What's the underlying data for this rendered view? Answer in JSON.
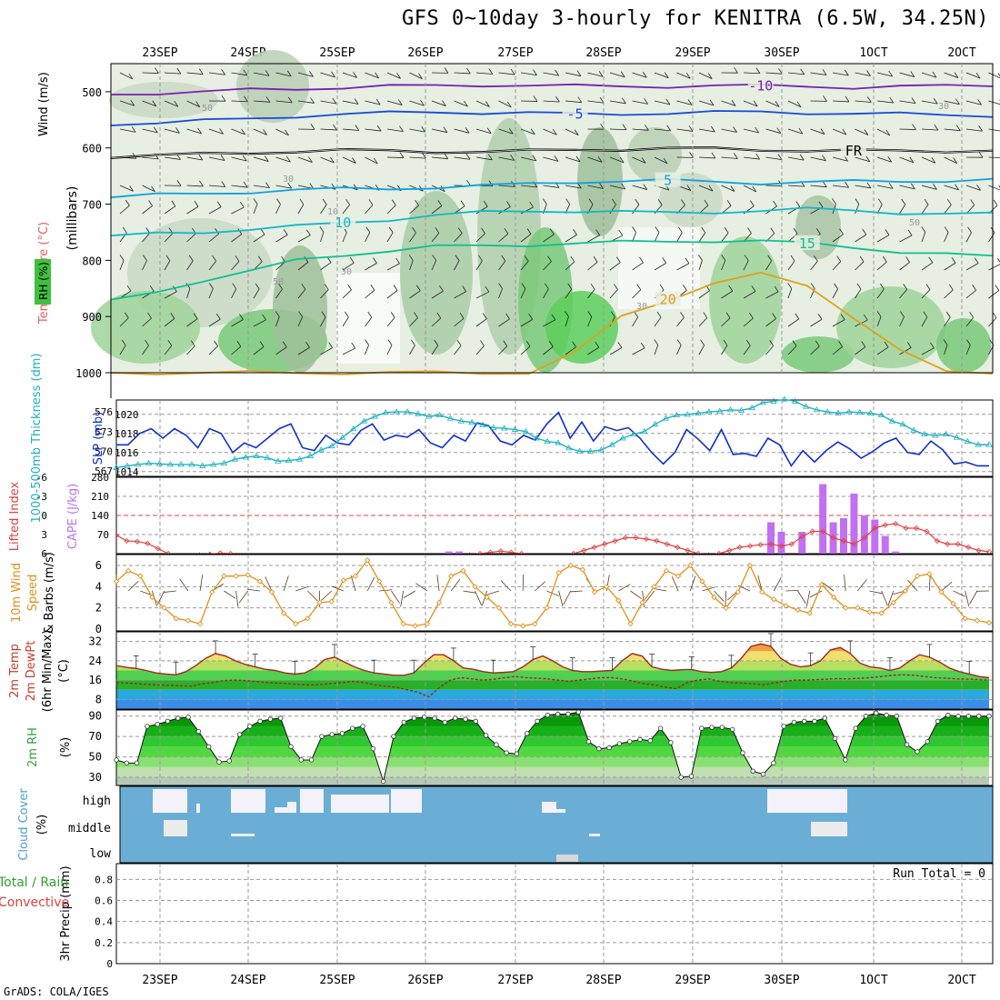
{
  "title": "GFS 0~10day 3-hourly for KENITRA (6.5W, 34.25N)",
  "credit": "GrADS: COLA/IGES",
  "dates": [
    "23SEP",
    "24SEP",
    "25SEP",
    "26SEP",
    "27SEP",
    "28SEP",
    "29SEP",
    "30SEP",
    "1OCT",
    "2OCT"
  ],
  "colors": {
    "grid": "#9a9a9a",
    "slp": "#1030c8",
    "thickness": "#20b0c0",
    "lifted": "#e04040",
    "cape": "#c070f0",
    "wind_speed": "#e0901a",
    "barb": "#5a3a20",
    "temp": "#a0281e",
    "dewpt": "#a0281e",
    "rh_line": "#111111",
    "cloud_bg": "#6aaed6",
    "cloud_gap": "#f4f2f8"
  },
  "chart_data": [
    {
      "type": "area",
      "name": "upper",
      "ylabel": "(millibars)",
      "side_labels": [
        "Wind (m/s)",
        "Temperature (°C)",
        "RH (%)"
      ],
      "yticks": [
        500,
        600,
        700,
        800,
        900,
        1000
      ],
      "isotherms": [
        {
          "label": "-10",
          "color": "#7a20b0",
          "level": [
            505,
            502,
            500,
            497,
            495,
            492,
            490,
            490,
            488,
            488,
            490,
            491,
            490,
            489,
            490,
            490,
            492,
            491,
            490,
            488
          ]
        },
        {
          "label": "-5",
          "color": "#1848d8",
          "level": [
            560,
            555,
            552,
            548,
            543,
            540,
            538,
            536,
            537,
            538,
            540,
            539,
            538,
            537,
            536,
            537,
            539,
            540,
            541,
            542
          ]
        },
        {
          "label": "FR",
          "color": "#000000",
          "level": [
            618,
            614,
            611,
            608,
            606,
            605,
            605,
            606,
            607,
            606,
            603,
            602,
            601,
            602,
            603,
            604,
            605,
            606,
            605,
            604
          ]
        },
        {
          "label": "5",
          "color": "#10a0e0",
          "level": [
            688,
            684,
            681,
            678,
            675,
            673,
            672,
            670,
            668,
            664,
            660,
            659,
            658,
            660,
            662,
            661,
            660,
            659,
            658,
            657
          ]
        },
        {
          "label": "10",
          "color": "#10b8c8",
          "level": [
            756,
            752,
            749,
            745,
            740,
            733,
            727,
            720,
            715,
            712,
            712,
            714,
            716,
            714,
            711,
            709,
            712,
            715,
            717,
            718
          ]
        },
        {
          "label": "15",
          "color": "#10c090",
          "level": [
            870,
            855,
            835,
            820,
            800,
            790,
            783,
            776,
            774,
            772,
            770,
            768,
            766,
            765,
            766,
            770,
            776,
            785,
            790,
            793
          ]
        },
        {
          "label": "20",
          "color": "#e0a020",
          "level": [
            1000,
            1000,
            1000,
            1000,
            1000,
            1000,
            1000,
            1000,
            1000,
            1000,
            965,
            900,
            870,
            840,
            825,
            845,
            900,
            960,
            1000,
            1000
          ]
        }
      ],
      "rh_contour_labels": [
        "50",
        "30",
        "10",
        "30",
        "50",
        "30",
        "50",
        "30"
      ]
    },
    {
      "type": "line",
      "name": "slp-thickness",
      "left_label": "1000-500mb Thickness (dm)",
      "right_label": "SLP (mb)",
      "yticks_left": [
        567,
        570,
        573,
        576
      ],
      "yticks_right": [
        1014,
        1016,
        1018,
        1020
      ],
      "series": [
        {
          "name": "SLP",
          "values": [
            1016.8,
            1016.8,
            1018.0,
            1018.5,
            1017.5,
            1018.5,
            1017.8,
            1016.5,
            1018.5,
            1018.0,
            1016.0,
            1017.0,
            1016.5,
            1017.5,
            1018.5,
            1019.0,
            1016.5,
            1016.2,
            1017.8,
            1017.0,
            1016.8,
            1018.3,
            1019.0,
            1017.3,
            1017.8,
            1017.6,
            1018.4,
            1017.0,
            1016.5,
            1017.8,
            1017.2,
            1019.1,
            1018.8,
            1017.2,
            1016.8,
            1017.8,
            1017.3,
            1019.0,
            1020.2,
            1017.5,
            1019.2,
            1017.2,
            1018.7,
            1018.3,
            1018.6,
            1017.5,
            1016.0,
            1014.8,
            1016.0,
            1018.4,
            1017.4,
            1016.2,
            1018.4,
            1015.8,
            1015.9,
            1015.6,
            1017.5,
            1016.8,
            1014.6,
            1016.2,
            1015.0,
            1016.2,
            1017.1,
            1016.4,
            1015.4,
            1016.1,
            1017.0,
            1017.5,
            1016.0,
            1015.8,
            1017.2,
            1016.3,
            1014.8,
            1015.0,
            1014.6,
            1014.6
          ]
        },
        {
          "name": "Thickness",
          "values": [
            567.5,
            567.8,
            568.0,
            568.2,
            568.1,
            568.0,
            568.0,
            568.0,
            567.8,
            568.0,
            568.2,
            568.8,
            569.1,
            569.3,
            569.0,
            568.5,
            568.6,
            568.8,
            569.3,
            570.2,
            570.8,
            572.1,
            573.4,
            574.6,
            575.3,
            575.9,
            576.0,
            576.0,
            575.7,
            575.3,
            575.5,
            575.0,
            574.6,
            574.4,
            574.0,
            573.6,
            573.5,
            573.3,
            573.0,
            572.0,
            571.5,
            571.3,
            570.5,
            570.0,
            570.0,
            570.2,
            571.0,
            572.0,
            572.6,
            573.0,
            574.1,
            575.0,
            575.5,
            575.6,
            575.8,
            576.0,
            576.1,
            576.3,
            576.2,
            576.6,
            577.4,
            577.6,
            577.9,
            577.6,
            576.8,
            576.3,
            576.0,
            575.8,
            576.0,
            575.9,
            575.8,
            575.5,
            574.6,
            574.1,
            573.2,
            572.6,
            572.4,
            572.6,
            572.1,
            571.5,
            571.0,
            571.0
          ]
        }
      ]
    },
    {
      "type": "bar",
      "name": "lifted-cape",
      "left_label": "Lifted Index",
      "right_label": "CAPE (J/kg)",
      "yticks_left": [
        "-6",
        "-3",
        "0",
        "3",
        "6"
      ],
      "yticks_right": [
        70,
        140,
        210,
        280
      ],
      "lifted_index": [
        3.1,
        4.0,
        4.1,
        4.4,
        5.2,
        6.0,
        6.6,
        6.8,
        6.2,
        6.1,
        5.9,
        6.0,
        6.5,
        6.8,
        6.9,
        7.2,
        7.5,
        8.5,
        9.0,
        9.5,
        9.5,
        9.0,
        8.5,
        8.2,
        8.0,
        7.5,
        7.0,
        7.2,
        7.5,
        7.8,
        7.5,
        7.2,
        6.8,
        6.4,
        6.2,
        6.0,
        5.8,
        5.6,
        5.8,
        6.0,
        6.5,
        7.0,
        7.5,
        7.0,
        6.0,
        5.5,
        5.0,
        4.5,
        4.0,
        3.5,
        3.5,
        3.7,
        4.0,
        4.5,
        5.0,
        5.5,
        6.0,
        6.2,
        6.0,
        5.5,
        5.0,
        4.8,
        4.6,
        4.5,
        4.8,
        4.5,
        3.3,
        2.5,
        2.5,
        3.5,
        4.0,
        4.5,
        3.5,
        2.0,
        1.5,
        1.3,
        2.0,
        2.0,
        2.5,
        4.0,
        4.5,
        4.5,
        5.0,
        5.5,
        5.7
      ],
      "cape_bars": [
        {
          "i": 63,
          "v": 115
        },
        {
          "i": 64,
          "v": 80
        },
        {
          "i": 66,
          "v": 80
        },
        {
          "i": 68,
          "v": 255
        },
        {
          "i": 69,
          "v": 115
        },
        {
          "i": 70,
          "v": 130
        },
        {
          "i": 71,
          "v": 220
        },
        {
          "i": 72,
          "v": 140
        },
        {
          "i": 73,
          "v": 125
        },
        {
          "i": 74,
          "v": 65
        },
        {
          "i": 75,
          "v": 8
        },
        {
          "i": 32,
          "v": 8
        },
        {
          "i": 33,
          "v": 8
        }
      ]
    },
    {
      "type": "line",
      "name": "wind10m",
      "left_label": "10m Wind Speed & Barbs (m/s)",
      "yticks": [
        0,
        2,
        4,
        6
      ],
      "values": [
        4.5,
        5.5,
        5.0,
        3.0,
        2.0,
        1.0,
        0.8,
        0.5,
        3.5,
        5.0,
        5.0,
        5.1,
        4.5,
        3.5,
        1.5,
        0.5,
        1.0,
        2.5,
        2.6,
        4.6,
        5.0,
        6.5,
        4.5,
        2.5,
        0.5,
        0.3,
        0.5,
        2.5,
        5.0,
        5.5,
        4.0,
        3.0,
        2.0,
        0.5,
        0.3,
        0.5,
        2.0,
        5.3,
        6.0,
        5.6,
        3.5,
        4.0,
        2.7,
        0.5,
        2.5,
        4.0,
        5.5,
        5.0,
        6.0,
        4.5,
        3.0,
        2.0,
        3.5,
        6.0,
        3.5,
        2.8,
        2.2,
        1.8,
        1.5,
        4.2,
        3.0,
        2.0,
        2.0,
        1.6,
        1.5,
        2.5,
        3.6,
        5.0,
        5.2,
        3.5,
        2.4,
        1.0,
        0.8,
        0.6
      ]
    },
    {
      "type": "area",
      "name": "temp2m",
      "left_label": "2m Temp 2m DewPt (6hr Min/Max) (°C)",
      "yticks": [
        8,
        16,
        24,
        32
      ],
      "temp": [
        22,
        21.3,
        20.8,
        20.0,
        19.0,
        18.5,
        18.2,
        19.5,
        22.0,
        25.0,
        27.0,
        26.0,
        24.0,
        22.5,
        21.5,
        20.5,
        20.0,
        19.0,
        18.5,
        19.0,
        21.0,
        24.5,
        25.5,
        23.5,
        21.5,
        20.0,
        19.0,
        18.5,
        18.0,
        18.0,
        19.0,
        23.0,
        26.5,
        26.5,
        24.0,
        21.0,
        20.5,
        19.5,
        19.0,
        19.2,
        19.5,
        21.5,
        24.5,
        26.0,
        24.0,
        21.5,
        20.0,
        19.5,
        19.5,
        19.8,
        20.0,
        24.0,
        27.0,
        26.0,
        21.5,
        20.5,
        20.0,
        20.3,
        20.4,
        19.5,
        19.2,
        19.5,
        21.0,
        25.0,
        30.0,
        31.0,
        30.0,
        25.0,
        22.5,
        21.5,
        22.0,
        24.0,
        28.5,
        29.5,
        27.0,
        23.0,
        21.5,
        21.0,
        20.0,
        21.0,
        24.0,
        26.5,
        25.5,
        23.5,
        21.0,
        19.5,
        18.5,
        17.5,
        17.0
      ],
      "dewpt": [
        15.0,
        14.8,
        14.5,
        14.2,
        14.0,
        13.8,
        13.6,
        13.5,
        14.5,
        15.0,
        15.8,
        16.0,
        15.8,
        15.4,
        15.0,
        14.8,
        14.5,
        14.2,
        14.0,
        14.2,
        14.6,
        15.0,
        15.5,
        15.0,
        14.0,
        13.5,
        13.0,
        12.0,
        11.0,
        9.0,
        13.0,
        16.0,
        17.0,
        16.5,
        16.0,
        16.3,
        17.0,
        17.5,
        17.0,
        16.8,
        16.5,
        16.0,
        15.5,
        16.0,
        16.5,
        17.0,
        17.0,
        16.5,
        15.5,
        14.5,
        14.0,
        13.0,
        12.5,
        15.0,
        16.0,
        16.5,
        15.5,
        15.0,
        14.8,
        14.5,
        14.0,
        14.8,
        15.5,
        16.0,
        16.0,
        16.2,
        16.4,
        16.6,
        16.5,
        16.8,
        17.0,
        17.5,
        18.0,
        18.2,
        18.0,
        17.5,
        17.0,
        16.8,
        16.5,
        16.4,
        16.2,
        16.0
      ]
    },
    {
      "type": "area",
      "name": "rh2m",
      "left_label": "2m RH (%)",
      "yticks": [
        30,
        50,
        70,
        90
      ],
      "values": [
        47,
        44,
        44,
        80,
        82,
        85,
        88,
        89,
        75,
        60,
        45,
        46,
        72,
        80,
        85,
        87,
        88,
        60,
        47,
        47,
        70,
        72,
        73,
        78,
        80,
        58,
        26,
        70,
        84,
        88,
        89,
        88,
        84,
        88,
        87,
        85,
        71,
        62,
        54,
        53,
        73,
        85,
        91,
        92,
        92,
        94,
        65,
        58,
        59,
        63,
        65,
        67,
        66,
        78,
        64,
        30,
        31,
        78,
        79,
        79,
        77,
        54,
        36,
        33,
        44,
        80,
        84,
        85,
        85,
        88,
        68,
        47,
        78,
        90,
        93,
        91,
        90,
        62,
        55,
        65,
        85,
        91,
        90,
        90,
        90,
        90
      ]
    },
    {
      "type": "bar",
      "name": "cloud",
      "left_label": "Cloud Cover (%)",
      "categories": [
        "high",
        "middle",
        "low"
      ]
    },
    {
      "type": "bar",
      "name": "precip",
      "left_label": "3hr Precip (mm)",
      "side_labels": [
        "Total / Rain",
        "Convective"
      ],
      "yticks": [
        0,
        0.2,
        0.4,
        0.6,
        0.8
      ],
      "run_total_label": "Run Total = 0"
    }
  ]
}
